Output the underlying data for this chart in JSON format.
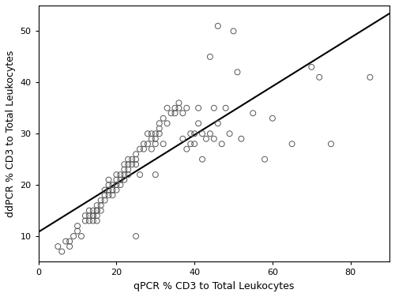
{
  "x_points": [
    5,
    6,
    7,
    8,
    8,
    9,
    10,
    10,
    11,
    12,
    12,
    13,
    13,
    13,
    14,
    14,
    14,
    14,
    15,
    15,
    15,
    15,
    15,
    16,
    16,
    16,
    17,
    17,
    17,
    18,
    18,
    18,
    18,
    19,
    19,
    19,
    20,
    20,
    20,
    20,
    21,
    21,
    21,
    22,
    22,
    22,
    22,
    23,
    23,
    23,
    23,
    24,
    24,
    25,
    25,
    25,
    25,
    26,
    26,
    27,
    27,
    28,
    28,
    29,
    29,
    29,
    30,
    30,
    30,
    30,
    31,
    31,
    31,
    32,
    32,
    33,
    33,
    34,
    35,
    35,
    36,
    36,
    37,
    37,
    38,
    38,
    39,
    39,
    40,
    40,
    41,
    41,
    42,
    42,
    43,
    44,
    44,
    45,
    45,
    46,
    46,
    47,
    48,
    49,
    50,
    51,
    52,
    55,
    58,
    60,
    65,
    70,
    72,
    75,
    85
  ],
  "y_points": [
    8,
    7,
    9,
    8,
    9,
    10,
    11,
    12,
    10,
    13,
    14,
    13,
    14,
    15,
    14,
    13,
    15,
    14,
    15,
    16,
    14,
    13,
    15,
    17,
    16,
    15,
    18,
    17,
    19,
    18,
    20,
    19,
    21,
    19,
    20,
    18,
    21,
    20,
    22,
    19,
    21,
    22,
    20,
    23,
    22,
    21,
    24,
    23,
    24,
    22,
    25,
    24,
    25,
    26,
    24,
    25,
    10,
    22,
    27,
    27,
    28,
    28,
    30,
    29,
    27,
    30,
    22,
    29,
    28,
    30,
    31,
    32,
    30,
    33,
    28,
    32,
    35,
    34,
    34,
    35,
    35,
    36,
    29,
    34,
    27,
    35,
    28,
    30,
    30,
    28,
    35,
    32,
    25,
    30,
    29,
    45,
    30,
    35,
    29,
    51,
    32,
    28,
    35,
    30,
    50,
    42,
    29,
    34,
    25,
    33,
    28,
    43,
    41,
    28,
    41
  ],
  "xlabel": "qPCR % CD3 to Total Leukocytes",
  "ylabel": "ddPCR % CD3 to Total Leukocytes",
  "xlim": [
    0,
    90
  ],
  "ylim": [
    5,
    55
  ],
  "xticks": [
    0,
    20,
    40,
    60,
    80
  ],
  "yticks": [
    10,
    20,
    30,
    40,
    50
  ],
  "line_color": "#000000",
  "marker_color": "none",
  "marker_edge_color": "#555555",
  "background_color": "#ffffff",
  "marker_size": 5,
  "line_width": 1.5
}
